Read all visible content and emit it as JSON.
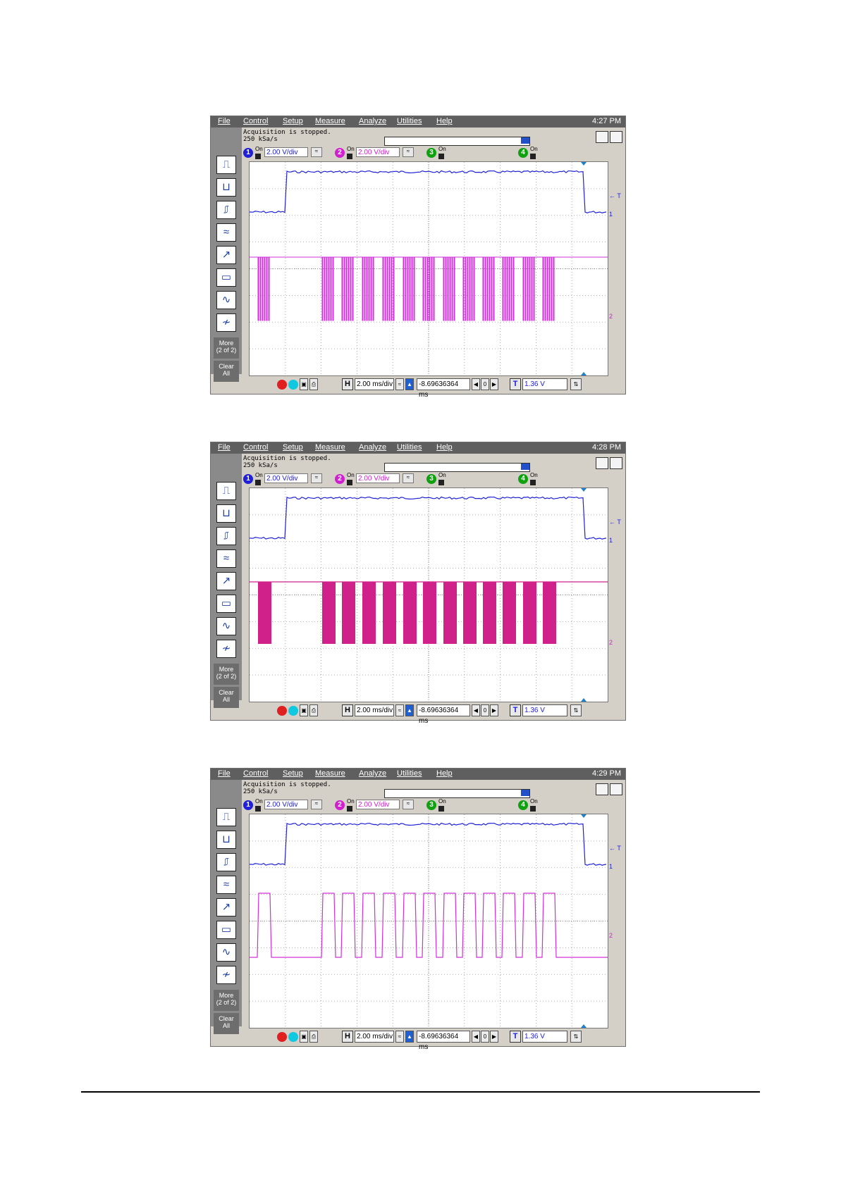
{
  "menu": [
    "File",
    "Control",
    "Setup",
    "Measure",
    "Analyze",
    "Utilities",
    "Help"
  ],
  "status": {
    "line1": "Acquisition is stopped.",
    "line2": "250 kSa/s"
  },
  "channels": [
    {
      "num": "1",
      "on": "On",
      "scale": "2.00 V/div",
      "color": "#2020d8"
    },
    {
      "num": "2",
      "on": "On",
      "scale": "2.00 V/div",
      "color": "#d020d0"
    },
    {
      "num": "3",
      "on": "On",
      "scale": "",
      "color": "#10a010"
    },
    {
      "num": "4",
      "on": "On",
      "scale": "",
      "color": "#10a010"
    }
  ],
  "side": {
    "more": "More",
    "more2": "(2 of 2)",
    "clear": "Clear",
    "all": "All"
  },
  "bottom": {
    "h": "H",
    "timebase": "2.00 ms/div",
    "delay": "-8.69636364 ms",
    "t": "T",
    "trigger_level": "1.36 V"
  },
  "markers": {
    "trigger": "← T",
    "ch1": "1",
    "ch2": "2"
  },
  "icons": [
    "rising-edge-icon",
    "falling-edge-icon",
    "pulse-width-icon",
    "glitch-icon",
    "runt-icon",
    "timeout-icon",
    "sine-icon",
    "waveform-icon"
  ],
  "screenshots": [
    {
      "time": "4:27 PM",
      "ch2_mode": "spikes"
    },
    {
      "time": "4:28 PM",
      "ch2_mode": "bursts"
    },
    {
      "time": "4:29 PM",
      "ch2_mode": "pulses"
    }
  ],
  "colors": {
    "ch1": "#2020d8",
    "ch2_thin": "#d030d8",
    "ch2_dense": "#d0208a",
    "grid": "#9a9a9a"
  }
}
